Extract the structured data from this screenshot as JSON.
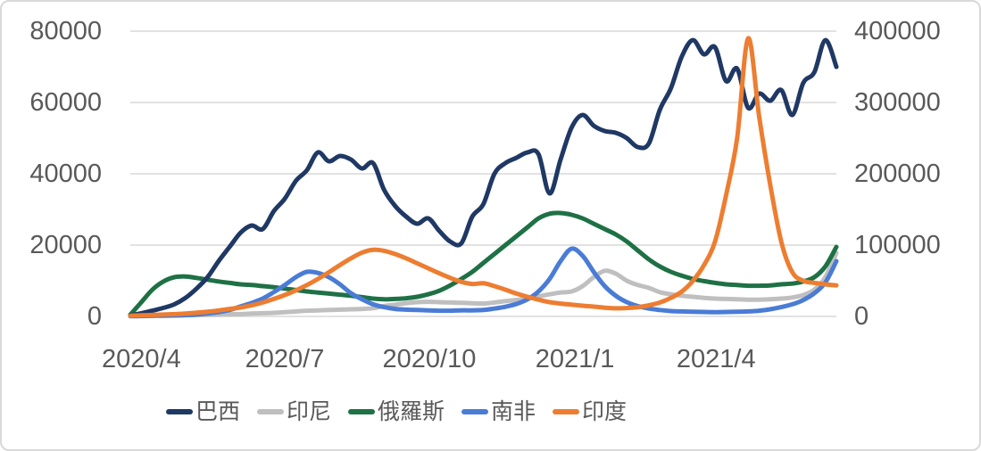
{
  "chart_data": {
    "type": "line",
    "title": "",
    "grid": true,
    "legend_position": "bottom",
    "background_color": "#ffffff",
    "gridline_color": "#d9d9d9",
    "text_color": "#595959",
    "x_axis": {
      "tick_labels": [
        "2020/4",
        "2020/7",
        "2020/10",
        "2021/1",
        "2021/4"
      ],
      "tick_week_positions": [
        1,
        14,
        27.1,
        40.3,
        53.1
      ],
      "start_date": "2020/3/25",
      "step_days": 7,
      "n_points": 65
    },
    "y_axis_left": {
      "tick_labels": [
        "0",
        "20000",
        "40000",
        "60000",
        "80000"
      ],
      "min": 0,
      "max": 80000
    },
    "y_axis_right": {
      "tick_labels": [
        "0",
        "100000",
        "200000",
        "300000",
        "400000"
      ],
      "min": 0,
      "max": 400000
    },
    "series": [
      {
        "name": "巴西",
        "key": "brazil",
        "color": "#1f3864",
        "axis": "left",
        "values": [
          300,
          900,
          1600,
          2400,
          3400,
          5200,
          7800,
          11000,
          15500,
          19500,
          23500,
          25500,
          24500,
          29500,
          33000,
          38000,
          41000,
          46000,
          43500,
          45000,
          44000,
          41500,
          43000,
          35500,
          31000,
          28000,
          26000,
          27500,
          24000,
          21000,
          20500,
          28000,
          31500,
          40000,
          43000,
          44500,
          46000,
          45500,
          34500,
          44000,
          53000,
          56500,
          53500,
          52000,
          51500,
          50000,
          47500,
          48500,
          58000,
          64000,
          73000,
          77500,
          73500,
          75500,
          66000,
          69500,
          58500,
          62500,
          60500,
          63500,
          56500,
          65500,
          68500,
          77500,
          70000
        ]
      },
      {
        "name": "印尼",
        "key": "indonesia",
        "color": "#bfbfbf",
        "axis": "left",
        "values": [
          100,
          150,
          250,
          300,
          330,
          350,
          400,
          450,
          500,
          600,
          650,
          800,
          900,
          1000,
          1200,
          1400,
          1600,
          1700,
          1800,
          1900,
          2000,
          2100,
          2300,
          2900,
          3300,
          3700,
          4000,
          4100,
          4000,
          3900,
          3800,
          3700,
          3600,
          3900,
          4300,
          4600,
          5000,
          5600,
          6200,
          6700,
          7000,
          8500,
          11000,
          12800,
          12000,
          10000,
          8800,
          8000,
          6800,
          6200,
          5800,
          5500,
          5200,
          5000,
          4900,
          4800,
          4700,
          4700,
          4800,
          5000,
          5300,
          6000,
          7500,
          11000,
          17800
        ]
      },
      {
        "name": "俄羅斯",
        "key": "russia",
        "color": "#1e7145",
        "axis": "left",
        "values": [
          500,
          4000,
          7500,
          9800,
          11000,
          11200,
          10800,
          10300,
          9800,
          9400,
          9000,
          8800,
          8500,
          8200,
          7800,
          7400,
          7000,
          6700,
          6400,
          6100,
          5800,
          5400,
          5000,
          4800,
          4900,
          5100,
          5500,
          6200,
          7200,
          8700,
          10500,
          12500,
          15000,
          17500,
          20000,
          22500,
          25000,
          27500,
          28800,
          29000,
          28500,
          27500,
          26000,
          24500,
          23000,
          21000,
          18500,
          16000,
          14000,
          12500,
          11400,
          10500,
          9900,
          9400,
          9000,
          8800,
          8600,
          8600,
          8700,
          9000,
          9200,
          9800,
          11000,
          14000,
          19500
        ]
      },
      {
        "name": "南非",
        "key": "south-africa",
        "color": "#4a7cd6",
        "axis": "left",
        "values": [
          50,
          100,
          150,
          200,
          250,
          350,
          500,
          800,
          1200,
          1800,
          2800,
          3800,
          5000,
          6800,
          8800,
          11000,
          12500,
          12200,
          11000,
          9000,
          6500,
          4800,
          3400,
          2600,
          2100,
          1900,
          1800,
          1700,
          1600,
          1600,
          1700,
          1700,
          1800,
          2200,
          2700,
          3500,
          4800,
          7000,
          10500,
          15500,
          19000,
          17000,
          12500,
          8500,
          5800,
          4000,
          2900,
          2200,
          1800,
          1500,
          1400,
          1300,
          1250,
          1200,
          1250,
          1300,
          1400,
          1600,
          2000,
          2600,
          3400,
          4600,
          6500,
          9500,
          15500
        ]
      },
      {
        "name": "印度",
        "key": "india",
        "color": "#ed7d31",
        "axis": "right",
        "values": [
          900,
          1500,
          2000,
          2600,
          3300,
          4000,
          5200,
          6600,
          8400,
          10500,
          12500,
          15500,
          19500,
          24500,
          30000,
          36500,
          44000,
          52500,
          62000,
          72000,
          81500,
          89500,
          93500,
          92000,
          87500,
          81500,
          74500,
          67500,
          60500,
          54000,
          48500,
          45500,
          46500,
          42500,
          37500,
          32000,
          27500,
          23500,
          20000,
          18000,
          16500,
          15000,
          13800,
          12300,
          11400,
          11800,
          13000,
          15500,
          19500,
          26000,
          35000,
          50000,
          72000,
          105000,
          170000,
          250000,
          390000,
          280000,
          185000,
          105000,
          62000,
          50000,
          47000,
          45000,
          43500
        ]
      }
    ]
  }
}
